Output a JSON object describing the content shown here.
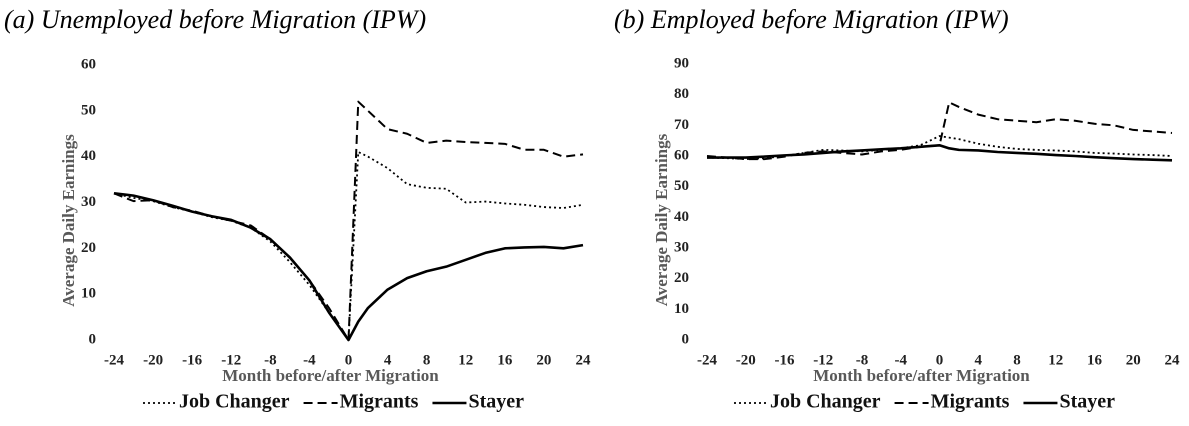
{
  "chart_data": [
    {
      "type": "line",
      "title": "(a) Unemployed before Migration (IPW)",
      "x_label": "Month before/after Migration",
      "y_label": "Average Daily Earnings",
      "x": [
        -24,
        -22,
        -20,
        -18,
        -16,
        -14,
        -12,
        -10,
        -8,
        -6,
        -4,
        -2,
        0,
        1,
        2,
        4,
        6,
        8,
        10,
        12,
        14,
        16,
        18,
        20,
        22,
        24
      ],
      "xlim": [
        -24,
        24
      ],
      "xticks": [
        -24,
        -20,
        -16,
        -12,
        -8,
        -4,
        0,
        4,
        8,
        12,
        16,
        20,
        24
      ],
      "ylim": [
        0,
        60
      ],
      "yticks": [
        0,
        10,
        20,
        30,
        40,
        50,
        60
      ],
      "grid": false,
      "legend": "bottom",
      "series": [
        {
          "name": "Job Changer",
          "color": "#000000",
          "dash": "dotted",
          "values": [
            32,
            31,
            30.3,
            29,
            28,
            26.8,
            26,
            24.5,
            21.5,
            17,
            12,
            6,
            0,
            41,
            40,
            37.5,
            34,
            33.2,
            33,
            30,
            30.2,
            29.8,
            29.5,
            29,
            28.8,
            29.5
          ]
        },
        {
          "name": "Migrants",
          "color": "#000000",
          "dash": "dashed",
          "values": [
            32,
            30.3,
            30.5,
            29,
            28.2,
            27,
            26,
            25,
            22,
            18,
            13,
            7,
            0,
            52,
            50,
            46,
            45,
            43,
            43.5,
            43.2,
            43,
            42.8,
            41.5,
            41.5,
            40,
            40.5
          ]
        },
        {
          "name": "Stayer",
          "color": "#000000",
          "dash": "solid",
          "values": [
            32,
            31.5,
            30.5,
            29.3,
            28,
            27,
            26.2,
            24.5,
            22,
            18,
            13,
            6,
            0,
            4,
            7,
            11,
            13.5,
            15,
            16,
            17.5,
            19,
            20,
            20.2,
            20.3,
            20,
            20.7
          ]
        }
      ]
    },
    {
      "type": "line",
      "title": "(b) Employed before Migration (IPW)",
      "x_label": "Month before/after Migration",
      "y_label": "Average Daily Earnings",
      "x": [
        -24,
        -22,
        -20,
        -18,
        -16,
        -14,
        -12,
        -10,
        -8,
        -6,
        -4,
        -2,
        0,
        1,
        2,
        4,
        6,
        8,
        10,
        12,
        14,
        16,
        18,
        20,
        22,
        24
      ],
      "xlim": [
        -24,
        24
      ],
      "xticks": [
        -24,
        -20,
        -16,
        -12,
        -8,
        -4,
        0,
        4,
        8,
        12,
        16,
        20,
        24
      ],
      "ylim": [
        0,
        90
      ],
      "yticks": [
        0,
        10,
        20,
        30,
        40,
        50,
        60,
        70,
        80,
        90
      ],
      "grid": false,
      "legend": "bottom",
      "series": [
        {
          "name": "Job Changer",
          "color": "#000000",
          "dash": "dotted",
          "values": [
            59.5,
            59.3,
            59,
            59.3,
            60,
            61,
            62,
            61.8,
            61.5,
            62,
            62.5,
            63.5,
            66.5,
            66,
            65.5,
            64,
            63,
            62.3,
            62,
            61.8,
            61.5,
            61,
            60.8,
            60.5,
            60.3,
            60
          ]
        },
        {
          "name": "Migrants",
          "color": "#000000",
          "dash": "dashed",
          "values": [
            60,
            59.5,
            59,
            59,
            59.8,
            61,
            61.5,
            61,
            60.5,
            61.5,
            62,
            63,
            63.5,
            77.5,
            76,
            73.5,
            72,
            71.5,
            71,
            72,
            71.5,
            70.5,
            70,
            68.5,
            68,
            67.5
          ]
        },
        {
          "name": "Stayer",
          "color": "#000000",
          "dash": "solid",
          "values": [
            59.5,
            59.5,
            59.5,
            59.8,
            60.2,
            60.5,
            61,
            61.5,
            61.8,
            62.2,
            62.5,
            63,
            63.5,
            62.5,
            62,
            61.8,
            61.3,
            61,
            60.7,
            60.3,
            60,
            59.6,
            59.3,
            59,
            58.8,
            58.6
          ]
        }
      ]
    }
  ]
}
